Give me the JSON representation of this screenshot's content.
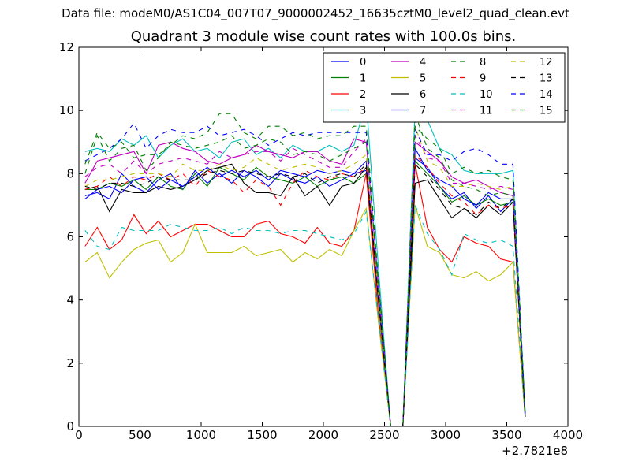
{
  "suptitle": "Data file: modeM0/AS1C04_007T07_9000002452_16635cztM0_level2_quad_clean.evt",
  "chart_data": {
    "type": "line",
    "title": "Quadrant 3 module wise count rates with 100.0s bins.",
    "xlabel": "",
    "ylabel": "",
    "xlim": [
      0,
      4000
    ],
    "ylim": [
      0,
      12
    ],
    "x_offset_label": "+2.7821e8",
    "x_ticks": [
      0,
      500,
      1000,
      1500,
      2000,
      2500,
      3000,
      3500,
      4000
    ],
    "x_tick_labels": [
      "0",
      "500",
      "1000",
      "1500",
      "2000",
      "2500",
      "3000",
      "3500",
      "4000"
    ],
    "y_ticks": [
      0,
      2,
      4,
      6,
      8,
      10,
      12
    ],
    "y_tick_labels": [
      "0",
      "2",
      "4",
      "6",
      "8",
      "10",
      "12"
    ],
    "grid": false,
    "legend_position": "top-right",
    "x": [
      50,
      150,
      250,
      350,
      450,
      550,
      650,
      750,
      850,
      950,
      1050,
      1150,
      1250,
      1350,
      1450,
      1550,
      1650,
      1750,
      1850,
      1950,
      2050,
      2150,
      2250,
      2350,
      2450,
      2550,
      2650,
      2750,
      2850,
      2950,
      3050,
      3150,
      3250,
      3350,
      3450,
      3550,
      3650
    ],
    "series": [
      {
        "name": "0",
        "color": "#0000ff",
        "dashed": false,
        "values": [
          7.3,
          7.4,
          7.2,
          8.0,
          7.6,
          7.4,
          7.8,
          8.0,
          7.5,
          8.1,
          7.7,
          8.0,
          7.7,
          8.1,
          7.9,
          7.6,
          8.0,
          7.8,
          7.7,
          7.9,
          7.6,
          7.8,
          8.0,
          8.1,
          4.0,
          0.0,
          0.0,
          8.5,
          8.2,
          7.6,
          7.2,
          7.4,
          6.9,
          7.3,
          6.8,
          7.2,
          0.4
        ]
      },
      {
        "name": "1",
        "color": "#008000",
        "dashed": false,
        "values": [
          7.5,
          7.5,
          7.7,
          7.6,
          7.8,
          7.5,
          7.9,
          7.6,
          7.5,
          8.0,
          7.6,
          8.2,
          8.0,
          7.8,
          8.2,
          7.9,
          7.8,
          7.7,
          7.9,
          7.6,
          7.8,
          7.9,
          7.7,
          8.0,
          3.9,
          0.0,
          0.0,
          8.4,
          8.0,
          7.6,
          7.1,
          7.3,
          7.0,
          7.2,
          7.0,
          7.1,
          0.4
        ]
      },
      {
        "name": "2",
        "color": "#ff0000",
        "dashed": false,
        "values": [
          5.7,
          6.3,
          5.6,
          5.9,
          6.7,
          6.1,
          6.5,
          6.0,
          6.2,
          6.4,
          6.4,
          6.2,
          6.0,
          6.0,
          6.4,
          6.5,
          6.1,
          6.0,
          5.8,
          6.3,
          5.8,
          5.7,
          6.2,
          8.0,
          3.5,
          0.0,
          0.0,
          8.3,
          6.3,
          5.6,
          5.2,
          6.0,
          5.8,
          5.7,
          5.3,
          5.2,
          0.3
        ]
      },
      {
        "name": "3",
        "color": "#00bfbf",
        "dashed": false,
        "values": [
          8.7,
          8.8,
          8.7,
          9.1,
          8.9,
          9.2,
          8.5,
          8.9,
          9.1,
          8.7,
          8.8,
          8.5,
          9.0,
          9.1,
          8.6,
          8.8,
          8.5,
          8.9,
          8.7,
          8.7,
          8.9,
          8.7,
          8.9,
          10.3,
          5.0,
          0.0,
          0.0,
          10.1,
          9.7,
          8.8,
          8.6,
          8.1,
          8.0,
          8.0,
          8.0,
          8.1,
          0.5
        ]
      },
      {
        "name": "4",
        "color": "#bf00bf",
        "dashed": false,
        "values": [
          7.7,
          8.4,
          8.5,
          8.6,
          8.7,
          8.0,
          8.9,
          9.0,
          8.8,
          8.7,
          8.4,
          8.3,
          8.5,
          8.6,
          8.9,
          8.7,
          8.6,
          8.5,
          8.7,
          8.7,
          8.4,
          8.3,
          9.1,
          9.0,
          4.5,
          0.0,
          0.0,
          9.0,
          8.7,
          8.4,
          7.9,
          7.7,
          7.8,
          7.6,
          7.4,
          7.3,
          0.4
        ]
      },
      {
        "name": "5",
        "color": "#bfbf00",
        "dashed": false,
        "values": [
          5.2,
          5.5,
          4.7,
          5.2,
          5.6,
          5.8,
          5.9,
          5.2,
          5.5,
          6.4,
          5.5,
          5.5,
          5.5,
          5.7,
          5.4,
          5.5,
          5.6,
          5.2,
          5.5,
          5.3,
          5.6,
          5.4,
          6.2,
          6.9,
          3.3,
          0.0,
          0.0,
          7.0,
          5.7,
          5.5,
          4.8,
          4.7,
          4.9,
          4.6,
          4.8,
          5.2,
          0.3
        ]
      },
      {
        "name": "6",
        "color": "#000000",
        "dashed": false,
        "values": [
          7.5,
          7.6,
          6.8,
          7.5,
          7.4,
          7.4,
          7.6,
          7.5,
          7.6,
          7.8,
          8.1,
          8.2,
          8.3,
          7.7,
          7.4,
          7.4,
          7.3,
          7.9,
          7.3,
          7.6,
          7.0,
          7.6,
          7.7,
          8.2,
          4.0,
          0.0,
          0.0,
          7.7,
          7.8,
          7.2,
          6.6,
          6.9,
          6.6,
          7.0,
          6.7,
          7.1,
          0.3
        ]
      },
      {
        "name": "7",
        "color": "#0000ff",
        "dashed": false,
        "values": [
          7.2,
          7.5,
          7.6,
          7.4,
          7.8,
          7.9,
          7.5,
          7.8,
          7.6,
          7.9,
          8.2,
          7.9,
          8.1,
          7.9,
          8.1,
          7.8,
          8.1,
          8.0,
          7.9,
          8.1,
          8.0,
          8.1,
          8.0,
          8.4,
          4.1,
          0.0,
          0.0,
          8.8,
          8.1,
          7.8,
          7.6,
          7.2,
          7.0,
          7.4,
          7.2,
          7.2,
          0.4
        ]
      },
      {
        "name": "8",
        "color": "#008000",
        "dashed": true,
        "values": [
          8.0,
          9.2,
          8.4,
          8.8,
          8.9,
          8.1,
          8.5,
          9.0,
          8.9,
          8.8,
          8.9,
          9.0,
          9.2,
          8.8,
          8.9,
          9.1,
          9.0,
          8.6,
          8.7,
          8.6,
          8.4,
          8.6,
          8.8,
          9.0,
          4.5,
          0.0,
          0.0,
          9.9,
          8.8,
          8.5,
          7.8,
          7.6,
          7.5,
          7.3,
          7.4,
          7.3,
          0.4
        ]
      },
      {
        "name": "9",
        "color": "#ff0000",
        "dashed": true,
        "values": [
          7.5,
          7.6,
          7.9,
          7.6,
          7.9,
          7.8,
          8.0,
          7.8,
          8.0,
          7.6,
          8.1,
          7.9,
          7.8,
          7.4,
          7.8,
          7.6,
          7.0,
          7.7,
          8.1,
          7.9,
          7.8,
          8.0,
          7.9,
          8.2,
          4.1,
          0.0,
          0.0,
          8.6,
          8.2,
          7.7,
          7.3,
          7.1,
          6.7,
          7.0,
          6.9,
          7.0,
          0.3
        ]
      },
      {
        "name": "10",
        "color": "#00bfbf",
        "dashed": true,
        "values": [
          6.2,
          5.7,
          5.6,
          6.3,
          6.2,
          6.2,
          6.2,
          6.4,
          6.3,
          6.2,
          6.2,
          6.3,
          6.1,
          6.3,
          6.2,
          6.2,
          6.1,
          6.2,
          6.2,
          6.1,
          6.0,
          5.9,
          6.1,
          6.8,
          3.4,
          0.0,
          0.0,
          7.0,
          6.1,
          5.6,
          4.8,
          6.1,
          5.9,
          5.8,
          5.9,
          5.7,
          0.3
        ]
      },
      {
        "name": "11",
        "color": "#bf00bf",
        "dashed": true,
        "values": [
          7.9,
          8.2,
          8.3,
          8.0,
          8.4,
          8.0,
          8.3,
          8.4,
          8.5,
          8.4,
          8.3,
          8.7,
          8.5,
          8.6,
          8.7,
          8.7,
          8.4,
          8.8,
          8.6,
          8.4,
          8.2,
          8.2,
          8.7,
          9.1,
          4.4,
          0.0,
          0.0,
          9.2,
          8.5,
          8.4,
          7.7,
          7.7,
          7.6,
          7.5,
          7.6,
          7.5,
          0.4
        ]
      },
      {
        "name": "12",
        "color": "#bfbf00",
        "dashed": true,
        "values": [
          7.6,
          7.8,
          7.8,
          7.9,
          8.0,
          8.0,
          8.0,
          7.9,
          8.3,
          8.1,
          8.1,
          8.3,
          8.1,
          8.2,
          8.5,
          8.3,
          8.1,
          8.2,
          8.3,
          8.2,
          8.0,
          8.1,
          8.3,
          8.6,
          4.2,
          0.0,
          0.0,
          9.5,
          8.4,
          8.2,
          7.6,
          7.6,
          7.7,
          7.6,
          7.5,
          7.6,
          0.4
        ]
      },
      {
        "name": "13",
        "color": "#000000",
        "dashed": true,
        "values": [
          7.6,
          7.5,
          7.7,
          7.7,
          7.6,
          7.7,
          7.9,
          7.8,
          7.8,
          7.8,
          8.0,
          8.1,
          8.0,
          8.1,
          8.0,
          7.9,
          8.0,
          7.9,
          8.0,
          7.7,
          7.9,
          8.0,
          7.9,
          8.3,
          4.1,
          0.0,
          0.0,
          8.3,
          7.9,
          7.5,
          7.0,
          6.9,
          6.7,
          7.1,
          6.9,
          7.2,
          0.3
        ]
      },
      {
        "name": "14",
        "color": "#0000ff",
        "dashed": true,
        "values": [
          8.4,
          8.6,
          8.8,
          9.1,
          9.6,
          8.8,
          9.2,
          9.4,
          9.3,
          9.3,
          9.5,
          9.2,
          9.3,
          9.4,
          9.2,
          8.9,
          9.1,
          9.3,
          9.2,
          9.3,
          9.3,
          9.3,
          9.3,
          9.3,
          4.6,
          0.0,
          0.0,
          9.4,
          8.6,
          8.6,
          8.4,
          8.7,
          8.8,
          8.6,
          8.3,
          8.3,
          0.4
        ]
      },
      {
        "name": "15",
        "color": "#008000",
        "dashed": true,
        "values": [
          8.3,
          9.3,
          8.8,
          9.0,
          8.5,
          8.6,
          8.6,
          8.9,
          9.2,
          9.1,
          9.3,
          9.9,
          9.9,
          9.3,
          9.1,
          9.5,
          9.5,
          9.2,
          9.3,
          9.1,
          9.2,
          9.2,
          9.5,
          9.5,
          4.6,
          0.0,
          0.0,
          9.5,
          9.1,
          8.8,
          8.0,
          8.2,
          8.0,
          8.1,
          7.9,
          7.8,
          0.4
        ]
      }
    ]
  }
}
